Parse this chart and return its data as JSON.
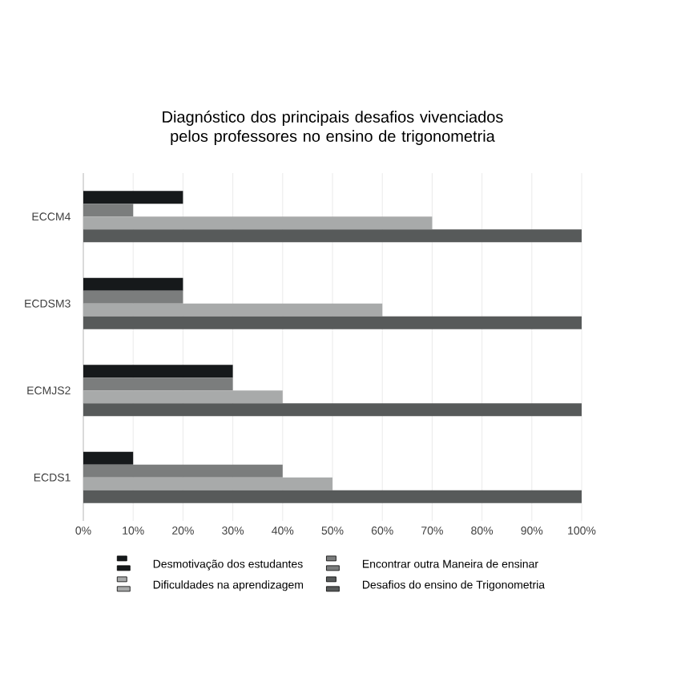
{
  "chart_data": {
    "type": "bar",
    "orientation": "horizontal",
    "title": "Diagnóstico dos principais desafios vivenciados pelos professores no ensino de trigonometria",
    "categories": [
      "ECCM4",
      "ECDSM3",
      "ECMJS2",
      "ECDS1"
    ],
    "series": [
      {
        "name": "Desmotivação dos estudantes",
        "color": "#16191b",
        "values": [
          20,
          20,
          30,
          10
        ]
      },
      {
        "name": "Encontrar outra Maneira de ensinar",
        "color": "#7b7d7d",
        "values": [
          10,
          20,
          30,
          40
        ]
      },
      {
        "name": "Dificuldades na aprendizagem",
        "color": "#a8aaaa",
        "values": [
          70,
          60,
          40,
          50
        ]
      },
      {
        "name": "Desafios do ensino de Trigonometria",
        "color": "#575a5a",
        "values": [
          100,
          100,
          100,
          100
        ]
      }
    ],
    "xlim": [
      0,
      100
    ],
    "xticks": [
      {
        "value": 0,
        "label": "0%"
      },
      {
        "value": 10,
        "label": "10%"
      },
      {
        "value": 20,
        "label": "20%"
      },
      {
        "value": 30,
        "label": "30%"
      },
      {
        "value": 40,
        "label": "40%"
      },
      {
        "value": 50,
        "label": "50%"
      },
      {
        "value": 60,
        "label": "60%"
      },
      {
        "value": 70,
        "label": "70%"
      },
      {
        "value": 80,
        "label": "80%"
      },
      {
        "value": 90,
        "label": "90%"
      },
      {
        "value": 100,
        "label": "100%"
      }
    ],
    "grid": "x",
    "legend": "bottom"
  }
}
